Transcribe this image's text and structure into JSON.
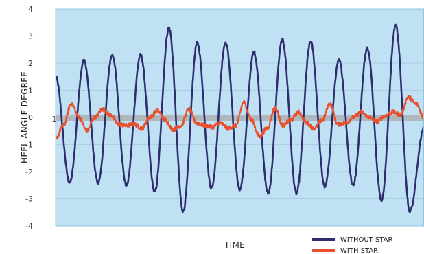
{
  "chart_data": {
    "type": "line",
    "title": "",
    "xlabel": "TIME",
    "ylabel": "HEEL ANGLE DEGREE",
    "ylim": [
      -4,
      4
    ],
    "yticks": [
      4,
      3,
      2,
      1,
      0,
      -1,
      -2,
      -3,
      -4
    ],
    "ytick_labels": [
      "4",
      "3",
      "2",
      "1",
      "0",
      "-1",
      "-2",
      "-3",
      "-4"
    ],
    "x_axis_marker_label": "1",
    "grid": true,
    "legend_position": "bottom-right",
    "plot_background": "#bfe1f3",
    "zero_band_color": "#a9a9a9",
    "series": [
      {
        "name": "WITHOUT STAR",
        "color": "#2e2e6e",
        "peaks": [
          1.5,
          -2.4,
          2.1,
          -2.4,
          2.3,
          -2.5,
          2.3,
          -2.75,
          3.3,
          -3.45,
          2.75,
          -2.6,
          2.75,
          -2.65,
          2.4,
          -2.8,
          2.85,
          -2.8,
          2.8,
          -2.55,
          2.1,
          -2.5,
          2.55,
          -3.05,
          3.4,
          -3.45,
          -0.4
        ]
      },
      {
        "name": "WITH STAR",
        "color": "#e8502e",
        "values": [
          -0.8,
          -0.3,
          0.5,
          0.0,
          -0.5,
          0.0,
          0.3,
          0.1,
          -0.25,
          -0.3,
          -0.25,
          -0.4,
          0.0,
          0.25,
          -0.1,
          -0.45,
          -0.3,
          0.3,
          -0.2,
          -0.3,
          -0.35,
          -0.2,
          -0.4,
          -0.3,
          0.55,
          -0.1,
          -0.7,
          -0.4,
          0.35,
          -0.3,
          -0.1,
          0.2,
          -0.2,
          -0.4,
          -0.1,
          0.5,
          -0.25,
          -0.2,
          0.0,
          0.2,
          0.0,
          -0.15,
          0.05,
          0.2,
          0.1,
          0.75,
          0.5,
          0.0
        ]
      }
    ]
  }
}
